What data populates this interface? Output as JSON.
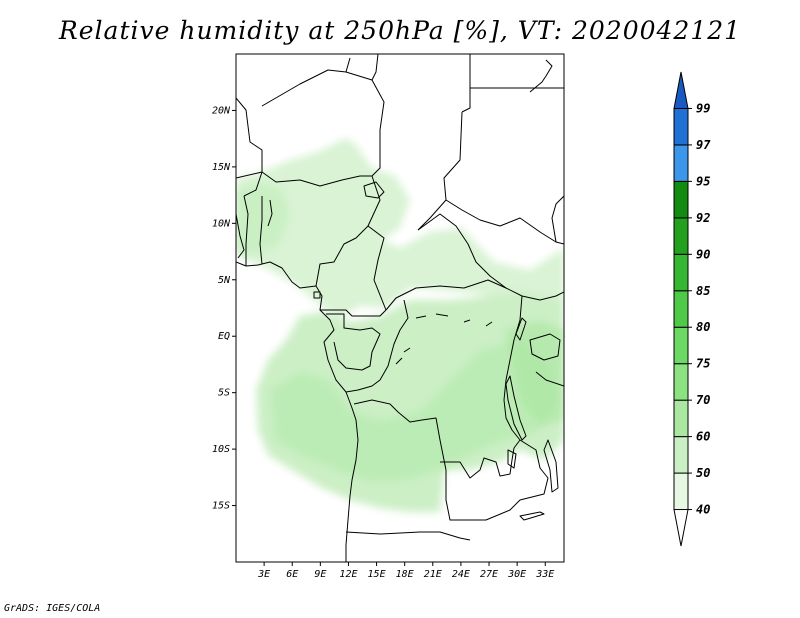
{
  "title": "Relative humidity at 250hPa [%], VT: 2020042121",
  "footer": "GrADS: IGES/COLA",
  "map": {
    "lon_range": [
      0,
      35
    ],
    "lat_range": [
      -20,
      25
    ],
    "lat_ticks": [
      {
        "value": 20,
        "label": "20N"
      },
      {
        "value": 15,
        "label": "15N"
      },
      {
        "value": 10,
        "label": "10N"
      },
      {
        "value": 5,
        "label": "5N"
      },
      {
        "value": 0,
        "label": "EQ"
      },
      {
        "value": -5,
        "label": "5S"
      },
      {
        "value": -10,
        "label": "10S"
      },
      {
        "value": -15,
        "label": "15S"
      }
    ],
    "lon_ticks": [
      {
        "value": 3,
        "label": "3E"
      },
      {
        "value": 6,
        "label": "6E"
      },
      {
        "value": 9,
        "label": "9E"
      },
      {
        "value": 12,
        "label": "12E"
      },
      {
        "value": 15,
        "label": "15E"
      },
      {
        "value": 18,
        "label": "18E"
      },
      {
        "value": 21,
        "label": "21E"
      },
      {
        "value": 24,
        "label": "24E"
      },
      {
        "value": 27,
        "label": "27E"
      },
      {
        "value": 30,
        "label": "30E"
      },
      {
        "value": 33,
        "label": "33E"
      }
    ]
  },
  "colorbar": {
    "levels": [
      "40",
      "50",
      "60",
      "70",
      "75",
      "80",
      "85",
      "90",
      "92",
      "95",
      "97",
      "99"
    ],
    "colors": [
      "#ffffff",
      "#e6f7e2",
      "#caefc4",
      "#aae8a2",
      "#8ce281",
      "#6cd964",
      "#4ec948",
      "#36b733",
      "#22a01e",
      "#118c11",
      "#3c96ea",
      "#2070d6",
      "#1859c2"
    ]
  }
}
